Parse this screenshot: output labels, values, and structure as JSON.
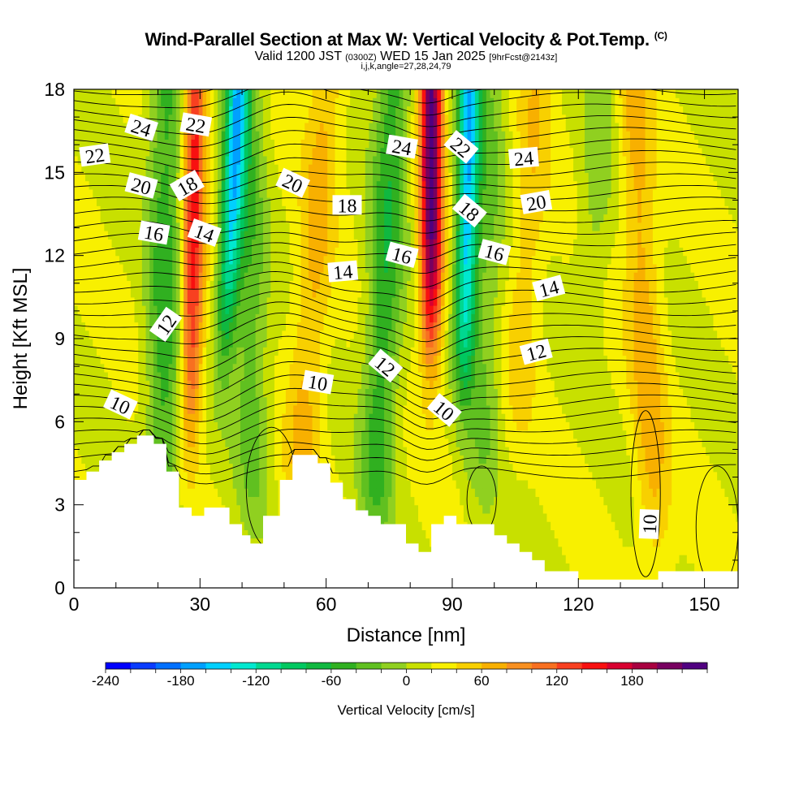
{
  "header": {
    "title": "Wind-Parallel Section at Max W: Vertical Velocity & Pot.Temp.",
    "copyright": "(C)",
    "valid_prefix": "Valid 1200 JST",
    "valid_utc": "(0300Z)",
    "valid_date": "WED 15 Jan 2025",
    "forecast": "[9hrFcst@2143z]",
    "params": "i,j,k,angle=27,28,24,79"
  },
  "chart_data": {
    "type": "heatmap",
    "title": "Wind-Parallel Section at Max W: Vertical Velocity & Pot.Temp.",
    "xlabel": "Distance [nm]",
    "ylabel": "Height [Kft MSL]",
    "xlim": [
      0,
      158
    ],
    "ylim": [
      0,
      18
    ],
    "x_ticks": [
      0,
      30,
      60,
      90,
      120,
      150
    ],
    "y_ticks": [
      0,
      3,
      6,
      9,
      12,
      15,
      18
    ],
    "colorbar": {
      "label": "Vertical Velocity [cm/s]",
      "min": -240,
      "max": 220,
      "step": 20,
      "tick_values": [
        -240,
        -180,
        -120,
        -60,
        0,
        60,
        120,
        180
      ],
      "tick_labels": [
        "-240",
        "-180",
        "-120",
        "-60",
        "0",
        "60",
        "120",
        "180"
      ],
      "colors": [
        "#0000ff",
        "#0a3cff",
        "#0070ff",
        "#00a0ff",
        "#00d0ff",
        "#00e8d0",
        "#00d890",
        "#00c860",
        "#10b840",
        "#30b020",
        "#60c020",
        "#90d020",
        "#c8e000",
        "#f8f000",
        "#f8d000",
        "#f8b000",
        "#f89020",
        "#f87020",
        "#f84020",
        "#f81010",
        "#d80030",
        "#a80040",
        "#780060",
        "#500080"
      ]
    },
    "vertical_velocity": {
      "description": "Vertical velocity shading (cm/s) as plumes tilted with height",
      "plumes": [
        {
          "x_base": 27,
          "x_top": 29,
          "z_start": 6,
          "peak": 130
        },
        {
          "x_base": 33,
          "x_top": 39,
          "z_start": 9,
          "peak": -150
        },
        {
          "x_base": 21,
          "x_top": 22,
          "z_start": 2,
          "peak": -70
        },
        {
          "x_base": 43,
          "x_top": 41,
          "z_start": 3,
          "peak": -55
        },
        {
          "x_base": 52,
          "x_top": 60,
          "z_start": 1,
          "peak": 45
        },
        {
          "x_base": 71,
          "x_top": 76,
          "z_start": 2,
          "peak": -75
        },
        {
          "x_base": 85,
          "x_top": 85,
          "z_start": 9,
          "peak": 210
        },
        {
          "x_base": 92,
          "x_top": 94,
          "z_start": 8,
          "peak": -170
        },
        {
          "x_base": 97,
          "x_top": 99,
          "z_start": 3,
          "peak": -40
        },
        {
          "x_base": 103,
          "x_top": 110,
          "z_start": 6,
          "peak": 35
        },
        {
          "x_base": 118,
          "x_top": 126,
          "z_start": 10,
          "peak": -30
        },
        {
          "x_base": 139,
          "x_top": 133,
          "z_start": 1,
          "peak": 50
        }
      ]
    },
    "potential_temperature": {
      "description": "Potential temperature contours (deg C), interval 1",
      "label_values": [
        "10",
        "12",
        "14",
        "16",
        "18",
        "20",
        "22",
        "24"
      ],
      "labels": [
        {
          "text": "22",
          "x": 5,
          "z": 15.6,
          "angle": -8
        },
        {
          "text": "24",
          "x": 16,
          "z": 16.6,
          "angle": 18
        },
        {
          "text": "22",
          "x": 29,
          "z": 16.7,
          "angle": 10
        },
        {
          "text": "20",
          "x": 16,
          "z": 14.5,
          "angle": 15
        },
        {
          "text": "18",
          "x": 27,
          "z": 14.5,
          "angle": -30
        },
        {
          "text": "16",
          "x": 19,
          "z": 12.8,
          "angle": 10
        },
        {
          "text": "14",
          "x": 31,
          "z": 12.8,
          "angle": 20
        },
        {
          "text": "12",
          "x": 22,
          "z": 9.5,
          "angle": -55
        },
        {
          "text": "10",
          "x": 11,
          "z": 6.6,
          "angle": 25
        },
        {
          "text": "20",
          "x": 52,
          "z": 14.6,
          "angle": 25
        },
        {
          "text": "18",
          "x": 65,
          "z": 13.8,
          "angle": 0
        },
        {
          "text": "14",
          "x": 64,
          "z": 11.4,
          "angle": -5
        },
        {
          "text": "10",
          "x": 58,
          "z": 7.4,
          "angle": 10
        },
        {
          "text": "12",
          "x": 74,
          "z": 8.0,
          "angle": 40
        },
        {
          "text": "24",
          "x": 78,
          "z": 15.9,
          "angle": 10
        },
        {
          "text": "16",
          "x": 78,
          "z": 12.0,
          "angle": 15
        },
        {
          "text": "10",
          "x": 88,
          "z": 6.4,
          "angle": 40
        },
        {
          "text": "22",
          "x": 92,
          "z": 15.9,
          "angle": 40
        },
        {
          "text": "18",
          "x": 94,
          "z": 13.6,
          "angle": 40
        },
        {
          "text": "16",
          "x": 100,
          "z": 12.1,
          "angle": 15
        },
        {
          "text": "24",
          "x": 107,
          "z": 15.5,
          "angle": -5
        },
        {
          "text": "20",
          "x": 110,
          "z": 13.9,
          "angle": -10
        },
        {
          "text": "14",
          "x": 113,
          "z": 10.8,
          "angle": -15
        },
        {
          "text": "12",
          "x": 110,
          "z": 8.5,
          "angle": -15
        },
        {
          "text": "10",
          "x": 137,
          "z": 2.3,
          "angle": -88
        }
      ]
    },
    "terrain": {
      "description": "Terrain (Kft MSL) along the section, plotted as white mask",
      "x": [
        0,
        3,
        3,
        6,
        6,
        9,
        9,
        12,
        12,
        15,
        15,
        19,
        19,
        22,
        22,
        25,
        25,
        28,
        28,
        31,
        31,
        34,
        34,
        37,
        37,
        40,
        40,
        42,
        42,
        45,
        45,
        49,
        49,
        52,
        52,
        58,
        58,
        61,
        61,
        64,
        64,
        67,
        67,
        70,
        70,
        73,
        73,
        79,
        79,
        82,
        82,
        85,
        85,
        88,
        88,
        91,
        91,
        94,
        94,
        100,
        100,
        103,
        103,
        106,
        106,
        109,
        109,
        112,
        112,
        120,
        120,
        139,
        139,
        158
      ],
      "z": [
        3.9,
        3.9,
        4.2,
        4.2,
        4.6,
        4.6,
        4.9,
        4.9,
        5.2,
        5.2,
        5.5,
        5.5,
        5.2,
        5.2,
        4.2,
        4.2,
        2.9,
        2.9,
        2.6,
        2.6,
        2.9,
        2.9,
        2.9,
        2.9,
        2.3,
        2.3,
        1.9,
        1.9,
        1.6,
        1.6,
        2.6,
        2.6,
        3.9,
        3.9,
        4.8,
        4.8,
        4.5,
        4.5,
        3.8,
        3.8,
        3.2,
        3.2,
        2.8,
        2.8,
        2.6,
        2.6,
        2.3,
        2.3,
        1.6,
        1.6,
        1.3,
        1.3,
        2.3,
        2.3,
        2.6,
        2.6,
        2.3,
        2.3,
        2.3,
        2.3,
        1.9,
        1.9,
        1.6,
        1.6,
        1.3,
        1.3,
        1.0,
        1.0,
        0.6,
        0.6,
        0.3,
        0.3,
        0.6,
        0.6
      ]
    }
  }
}
